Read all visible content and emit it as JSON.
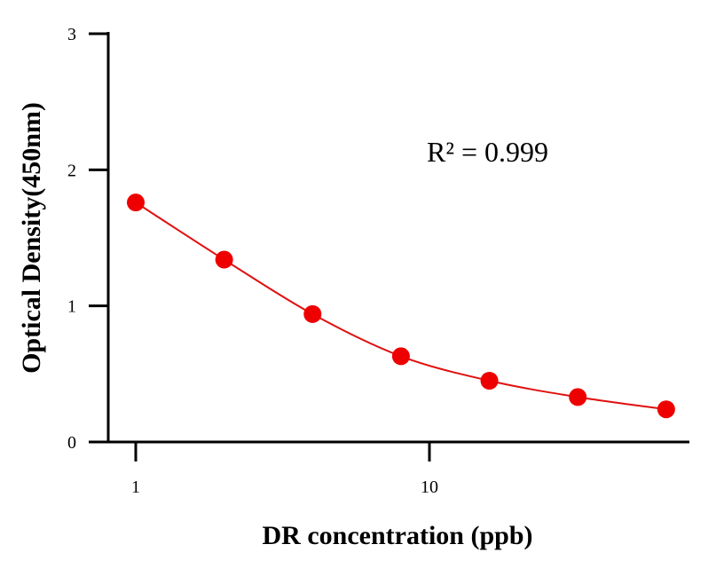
{
  "chart_data": {
    "type": "scatter",
    "title": "",
    "xlabel": "DR concentration (ppb)",
    "ylabel": "Optical Density(450nm)",
    "x_scale": "log",
    "xlim": [
      0.8,
      80
    ],
    "ylim": [
      0,
      3
    ],
    "x_ticks": [
      1,
      10
    ],
    "x_tick_labels": [
      "1",
      "10"
    ],
    "y_ticks": [
      0,
      1,
      2,
      3
    ],
    "y_tick_labels": [
      "0",
      "1",
      "2",
      "3"
    ],
    "grid": false,
    "legend": "none",
    "annotation": "R² = 0.999",
    "colors": {
      "points": "#ee0000",
      "curve": "#e01010",
      "axes": "#000000"
    },
    "series": [
      {
        "x": [
          1,
          2,
          4,
          8,
          16,
          32,
          64
        ],
        "y": [
          1.76,
          1.34,
          0.94,
          0.63,
          0.45,
          0.33,
          0.24
        ],
        "fit_curve": true
      }
    ]
  }
}
